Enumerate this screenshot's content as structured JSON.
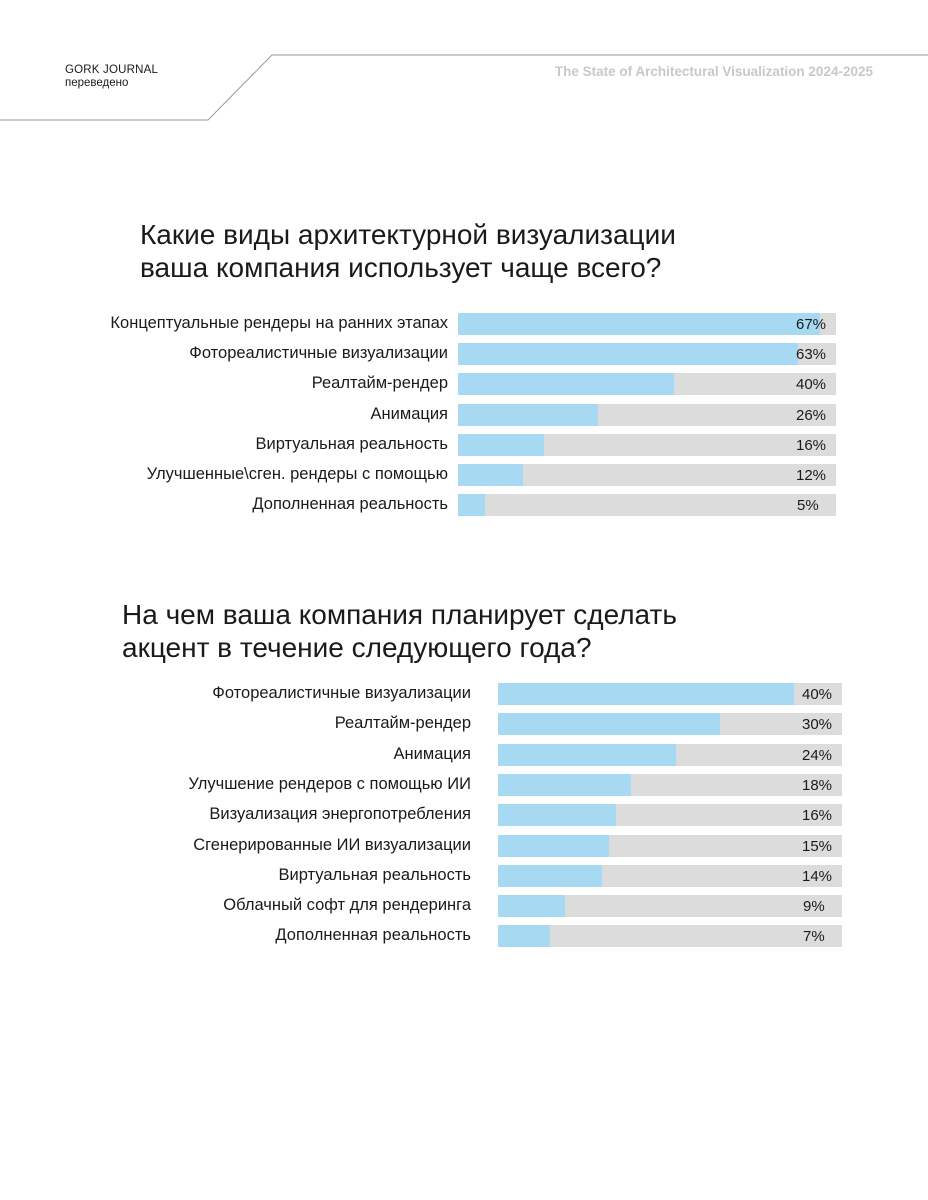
{
  "header": {
    "brand_name": "GORK JOURNAL",
    "brand_sub": "переведено",
    "report_title": "The State of Architectural Visualization 2024-2025"
  },
  "colors": {
    "fill": "#a7daf2",
    "track": "#dcdcdc"
  },
  "chart_data": [
    {
      "type": "bar",
      "title": "Какие виды архитектурной визуализации ваша компания использует чаще всего?",
      "title_lines": [
        "Какие виды архитектурной визуализации",
        "ваша компания использует чаще всего?"
      ],
      "categories": [
        "Концептуальные рендеры на ранних этапах",
        "Фотореалистичные визуализации",
        "Реалтайм-рендер",
        "Анимация",
        "Виртуальная реальность",
        "Улучшенные\\сген. рендеры с помощью",
        "Дополненная реальность"
      ],
      "values": [
        67,
        63,
        40,
        26,
        16,
        12,
        5
      ],
      "value_labels": [
        "67%",
        "63%",
        "40%",
        "26%",
        "16%",
        "12%",
        "5%"
      ],
      "xlim": [
        0,
        70
      ],
      "orientation": "horizontal"
    },
    {
      "type": "bar",
      "title": "На чем ваша компания планирует сделать акцент в течение следующего года?",
      "title_lines": [
        "На чем ваша компания планирует сделать",
        "акцент в течение следующего  года?"
      ],
      "categories": [
        "Фотореалистичные визуализации",
        "Реалтайм-рендер",
        "Анимация",
        "Улучшение  рендеров с помощью ИИ",
        "Визуализация энергопотребления",
        "Сгенерированные ИИ визуализации",
        "Виртуальная реальность",
        "Облачный софт для рендеринга",
        "Дополненная реальность"
      ],
      "values": [
        40,
        30,
        24,
        18,
        16,
        15,
        14,
        9,
        7
      ],
      "value_labels": [
        "40%",
        "30%",
        "24%",
        "18%",
        "16%",
        "15%",
        "14%",
        "9%",
        "7%"
      ],
      "xlim": [
        0,
        46.5
      ],
      "orientation": "horizontal"
    }
  ]
}
